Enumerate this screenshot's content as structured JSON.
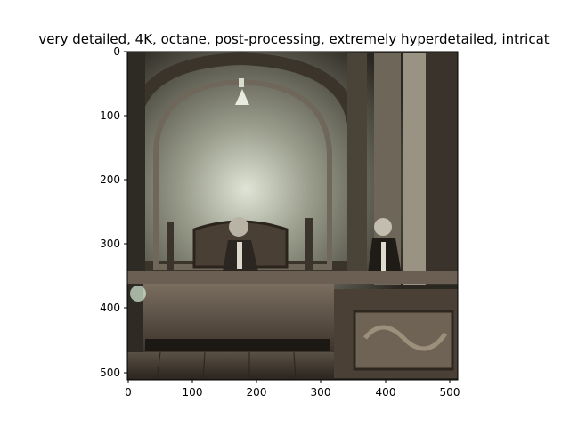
{
  "figure": {
    "title": "very detailed, 4K, octane, post-processing, extremely hyperdetailed, intricat",
    "image_description_icon": "courtroom-scene-image"
  },
  "axes": {
    "x_ticks": [
      "0",
      "100",
      "200",
      "300",
      "400",
      "500"
    ],
    "y_ticks": [
      "0",
      "100",
      "200",
      "300",
      "400",
      "500"
    ]
  }
}
